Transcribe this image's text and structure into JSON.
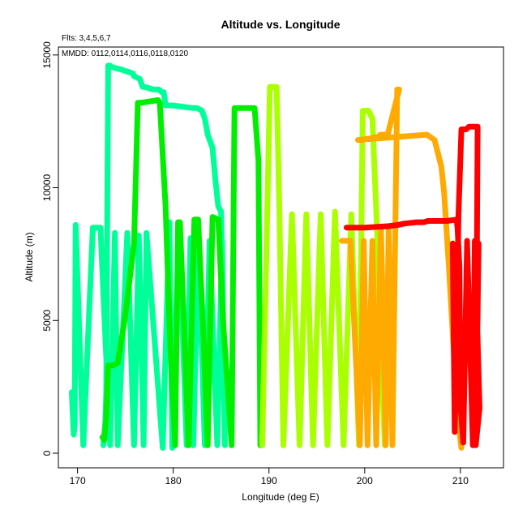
{
  "chart_data": {
    "type": "line",
    "title": "Altitude vs. Longitude",
    "xlabel": "Longitude (deg E)",
    "ylabel": "Altitude (m)",
    "xlim": [
      168,
      214.5
    ],
    "ylim": [
      -550,
      15300
    ],
    "xticks": [
      170,
      180,
      190,
      200,
      210
    ],
    "yticks": [
      0,
      5000,
      10000,
      15000
    ],
    "grid": false,
    "annotations": [
      "Flts: 3,4,5,6,7",
      "MMDD: 0112,0114,0116,0118,0120"
    ],
    "series": [
      {
        "color": "#00ff99",
        "x": [
          169.4,
          169.6,
          169.7,
          169.8,
          170.6,
          171.6,
          172.4,
          173.4,
          173.9,
          174.2,
          175.2,
          175.9,
          176.4,
          176.9,
          177.2,
          178.9,
          179.6,
          179.9,
          180.6,
          181.4,
          181.8,
          182.1,
          182.6,
          183.3,
          183.8,
          184.6,
          185.1,
          185.4,
          185.0,
          184.7,
          184.4,
          184.1,
          183.6,
          183.3,
          183.0,
          182.5,
          182.2,
          182.1,
          179.9,
          179.2,
          179.0,
          178.8,
          178.5,
          177.9,
          177.0,
          176.8,
          176.6,
          176.5,
          175.9,
          175.8,
          175.4,
          175.0,
          174.6,
          174.0,
          173.6,
          173.4,
          173.2,
          173.0,
          172.9,
          172.7
        ],
        "y": [
          2300,
          700,
          1100,
          8600,
          300,
          8500,
          8500,
          300,
          8300,
          300,
          8300,
          300,
          8200,
          300,
          8300,
          200,
          8700,
          200,
          8500,
          300,
          8100,
          300,
          8100,
          300,
          8000,
          300,
          8000,
          300,
          9100,
          9300,
          10300,
          11500,
          12000,
          12600,
          12900,
          13000,
          13000,
          13000,
          13100,
          13100,
          13600,
          13600,
          13700,
          13700,
          13800,
          13800,
          14000,
          14100,
          14200,
          14300,
          14350,
          14400,
          14450,
          14500,
          14550,
          14600,
          14600,
          2300,
          1200,
          300
        ]
      },
      {
        "color": "#00ee00",
        "x": [
          172.6,
          172.8,
          173.0,
          173.2,
          173.4,
          173.7,
          174.2,
          175.0,
          175.9,
          176.3,
          176.6,
          178.4,
          178.6,
          179.2,
          179.7,
          180.2,
          180.5,
          180.7,
          181.2,
          181.6,
          182.2,
          182.6,
          183.2,
          183.6,
          184.1,
          184.7,
          185.2,
          186.1,
          186.4,
          186.9,
          187.4,
          188.5,
          188.9,
          189.1
        ],
        "y": [
          600,
          500,
          1300,
          3300,
          3300,
          3300,
          3400,
          5200,
          7900,
          13200,
          13200,
          13300,
          13200,
          9300,
          4000,
          300,
          8700,
          8700,
          4200,
          300,
          8800,
          8800,
          4000,
          300,
          8900,
          8800,
          5000,
          300,
          13000,
          13000,
          13000,
          13000,
          11000,
          300
        ]
      },
      {
        "color": "#aaff00",
        "x": [
          189.3,
          189.3,
          190.1,
          190.8,
          191.1,
          191.5,
          192.4,
          193.2,
          193.9,
          194.6,
          195.4,
          196.1,
          196.9,
          197.8,
          198.6,
          199.4,
          199.8,
          200.4,
          200.8,
          201.3,
          201.6,
          202.1
        ],
        "y": [
          700,
          300,
          13800,
          13800,
          9000,
          300,
          9000,
          300,
          9000,
          300,
          9000,
          300,
          9100,
          300,
          9000,
          300,
          12900,
          12900,
          12600,
          8300,
          4600,
          300
        ]
      },
      {
        "color": "#ffaa00",
        "x": [
          197.6,
          198.5,
          199.5,
          199.9,
          200.3,
          200.8,
          201.2,
          201.7,
          202.2,
          202.5,
          202.9,
          203.2,
          203.4,
          203.6,
          202.4,
          201.6,
          201.4,
          201.0,
          200.6,
          200.2,
          199.8,
          199.4,
          199.3,
          206.5,
          207.3,
          208.0,
          208.3,
          208.8,
          209.2,
          209.6,
          209.9,
          210.1
        ],
        "y": [
          8000,
          8000,
          300,
          8000,
          300,
          8000,
          300,
          8500,
          300,
          8500,
          300,
          8500,
          13700,
          13700,
          12000,
          12000,
          11900,
          11900,
          11850,
          11850,
          11800,
          11800,
          11800,
          12000,
          11800,
          10800,
          9800,
          7000,
          4500,
          2000,
          800,
          200
        ]
      },
      {
        "color": "#ff0000",
        "x": [
          198.1,
          200.0,
          202.4,
          203.5,
          204.1,
          205.4,
          205.8,
          206.2,
          206.6,
          207.2,
          208.0,
          208.6,
          209.6,
          209.7,
          209.9,
          210.0,
          210.3,
          210.7,
          211.3,
          211.5,
          212.0,
          211.6,
          211.9,
          211.6,
          211.8,
          211.7,
          210.9,
          210.6,
          210.4,
          210.1,
          209.8,
          209.6,
          209.4,
          209.2
        ],
        "y": [
          8500,
          8500,
          8550,
          8600,
          8650,
          8700,
          8700,
          8700,
          8750,
          8750,
          8750,
          8750,
          8800,
          8500,
          7000,
          1800,
          400,
          8000,
          300,
          8000,
          1700,
          300,
          7900,
          300,
          12300,
          12300,
          12300,
          12200,
          12200,
          12200,
          9000,
          4000,
          800,
          7900
        ]
      }
    ]
  }
}
